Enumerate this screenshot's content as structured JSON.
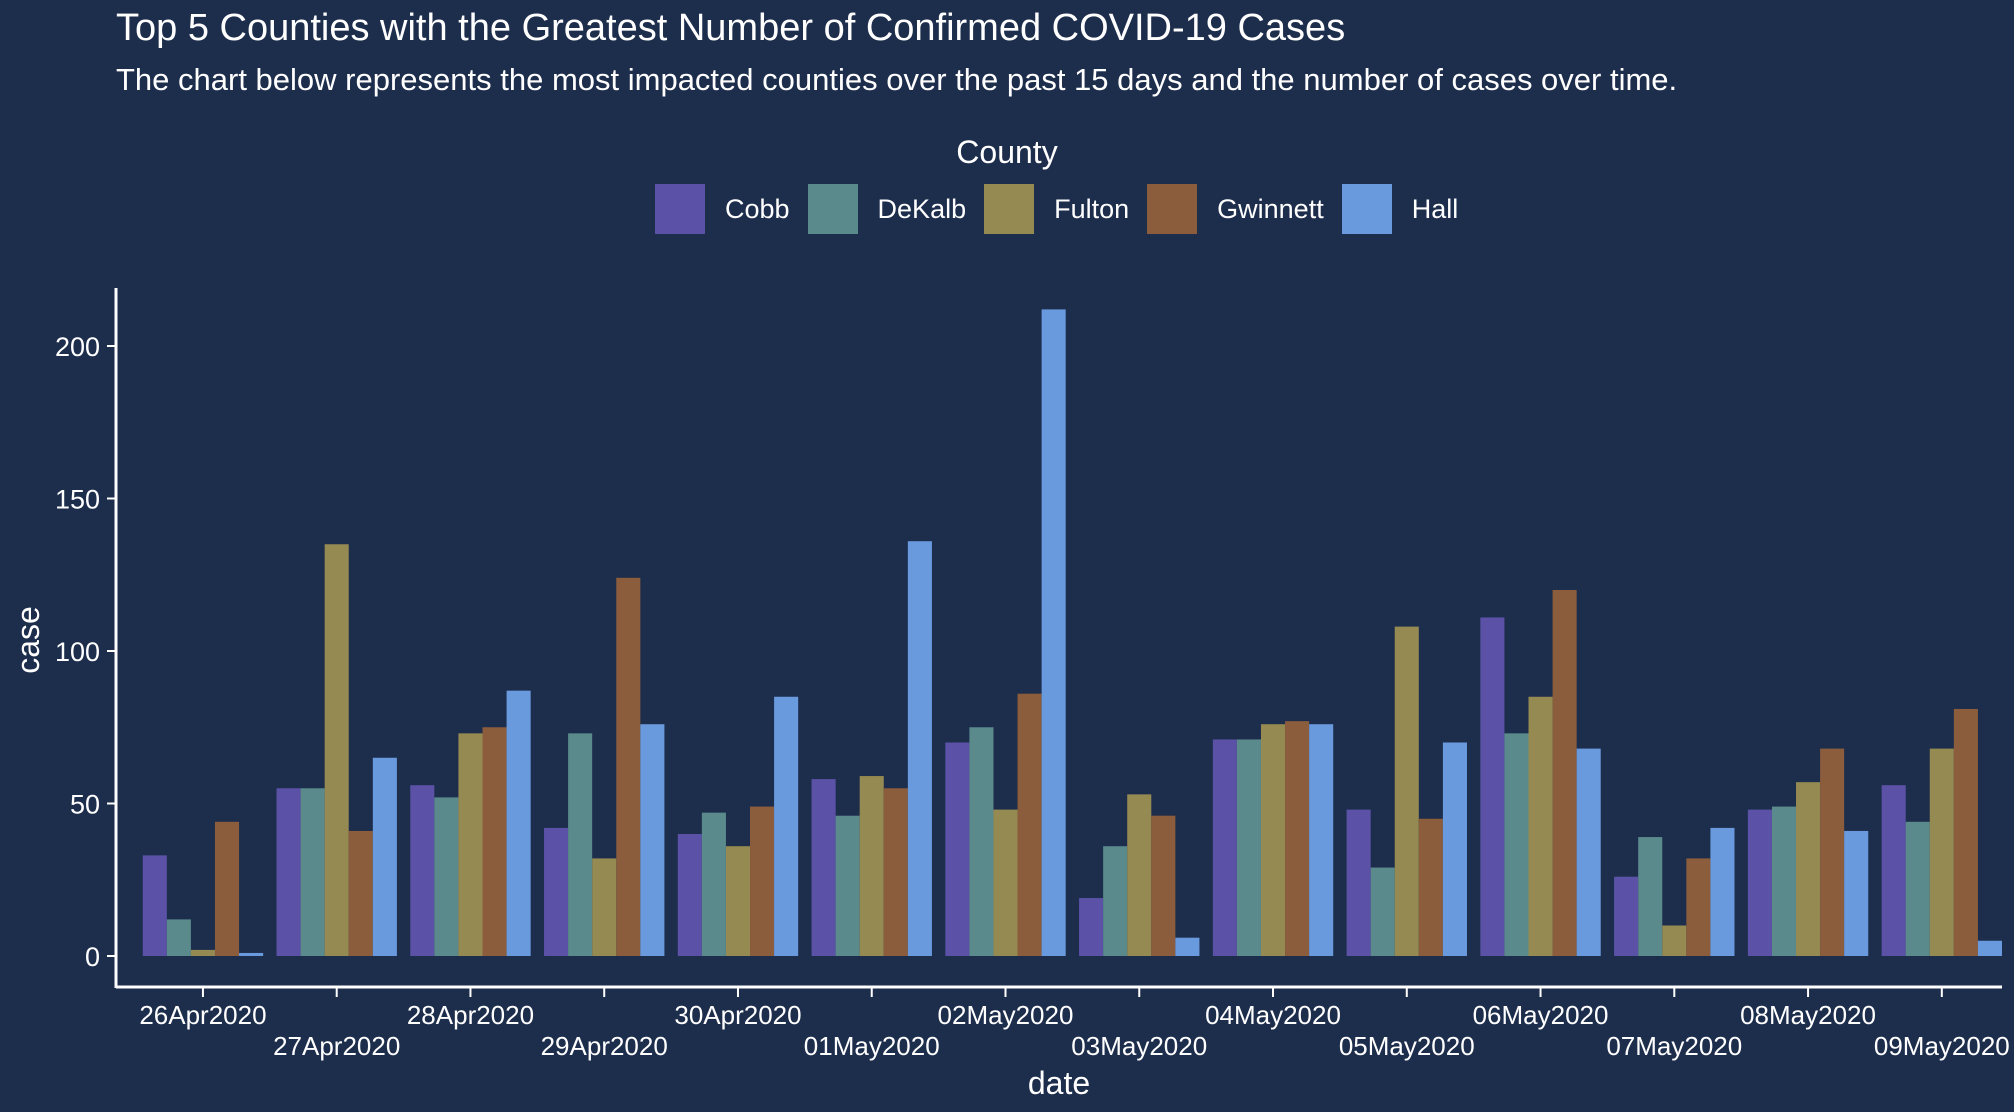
{
  "chart_data": {
    "type": "bar",
    "title": "Top 5 Counties with the Greatest Number of Confirmed COVID-19 Cases",
    "subtitle": "The chart below represents the most impacted counties over the past 15 days and the number of cases over time.",
    "legend_title": "County",
    "legend_position": "top",
    "xlabel": "date",
    "ylabel": "case",
    "ylim": [
      0,
      220
    ],
    "yticks": [
      0,
      50,
      100,
      150,
      200
    ],
    "grid": false,
    "categories": [
      "26Apr2020",
      "27Apr2020",
      "28Apr2020",
      "29Apr2020",
      "30Apr2020",
      "01May2020",
      "02May2020",
      "03May2020",
      "04May2020",
      "05May2020",
      "06May2020",
      "07May2020",
      "08May2020",
      "09May2020"
    ],
    "series": [
      {
        "name": "Cobb",
        "color": "#5b52a7",
        "values": [
          33,
          55,
          56,
          42,
          40,
          58,
          70,
          19,
          71,
          48,
          111,
          26,
          48,
          56
        ]
      },
      {
        "name": "DeKalb",
        "color": "#5a8a8c",
        "values": [
          12,
          55,
          52,
          73,
          47,
          46,
          75,
          36,
          71,
          29,
          73,
          39,
          49,
          44
        ]
      },
      {
        "name": "Fulton",
        "color": "#958a52",
        "values": [
          2,
          135,
          73,
          32,
          36,
          59,
          48,
          53,
          76,
          108,
          85,
          10,
          57,
          68
        ]
      },
      {
        "name": "Gwinnett",
        "color": "#8b5d3c",
        "values": [
          44,
          41,
          75,
          124,
          49,
          55,
          86,
          46,
          77,
          45,
          120,
          32,
          68,
          81
        ]
      },
      {
        "name": "Hall",
        "color": "#6a9ade",
        "values": [
          1,
          65,
          87,
          76,
          85,
          136,
          212,
          6,
          76,
          70,
          68,
          42,
          41,
          5
        ]
      }
    ]
  }
}
